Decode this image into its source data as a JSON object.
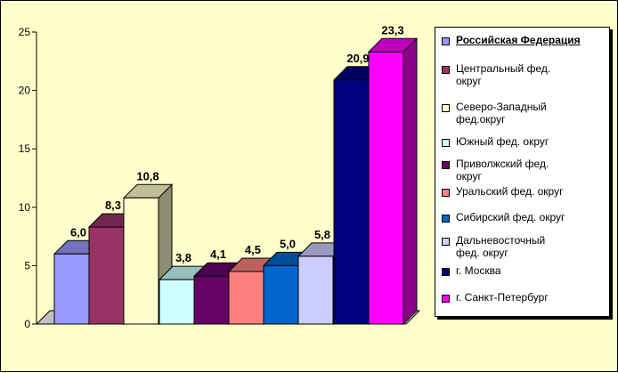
{
  "chart_data": {
    "type": "bar",
    "title": "",
    "xlabel": "",
    "ylabel": "",
    "ylim": [
      0,
      25
    ],
    "yticks": [
      "0",
      "5",
      "10",
      "15",
      "20",
      "25"
    ],
    "grid": false,
    "legend_position": "right",
    "series": [
      {
        "name": "Российская Федерация",
        "value": 6.0,
        "label": "6,0",
        "color": "#9999ff"
      },
      {
        "name": "Центральный фед. округ",
        "value": 8.3,
        "label": "8,3",
        "color": "#993366"
      },
      {
        "name": "Северо-Западный фед.округ",
        "value": 10.8,
        "label": "10,8",
        "color": "#ffffcc"
      },
      {
        "name": "Южный фед. округ",
        "value": 3.8,
        "label": "3,8",
        "color": "#ccffff"
      },
      {
        "name": "Приволжский фед. округ",
        "value": 4.1,
        "label": "4,1",
        "color": "#660066"
      },
      {
        "name": "Уральский фед. округ",
        "value": 4.5,
        "label": "4,5",
        "color": "#ff8080"
      },
      {
        "name": "Сибирский фед. округ",
        "value": 5.0,
        "label": "5,0",
        "color": "#0066cc"
      },
      {
        "name": "Дальневосточный фед. округ",
        "value": 5.8,
        "label": "5,8",
        "color": "#ccccff"
      },
      {
        "name": "г. Москва",
        "value": 20.9,
        "label": "20,9",
        "color": "#000080"
      },
      {
        "name": "г. Санкт-Петербург",
        "value": 23.3,
        "label": "23,3",
        "color": "#ff00ff"
      }
    ]
  },
  "legend": {
    "items": [
      {
        "line1": "Российская Федерация",
        "line2": ""
      },
      {
        "line1": "Центральный фед.",
        "line2": "округ"
      },
      {
        "line1": "Северо-Западный",
        "line2": "фед.округ"
      },
      {
        "line1": "Южный фед. округ",
        "line2": ""
      },
      {
        "line1": "Приволжский фед.",
        "line2": "округ"
      },
      {
        "line1": "Уральский фед. округ",
        "line2": ""
      },
      {
        "line1": "Сибирский фед. округ",
        "line2": ""
      },
      {
        "line1": "Дальневосточный",
        "line2": "фед. округ"
      },
      {
        "line1": "г. Москва",
        "line2": ""
      },
      {
        "line1": "г. Санкт-Петербург",
        "line2": ""
      }
    ]
  }
}
